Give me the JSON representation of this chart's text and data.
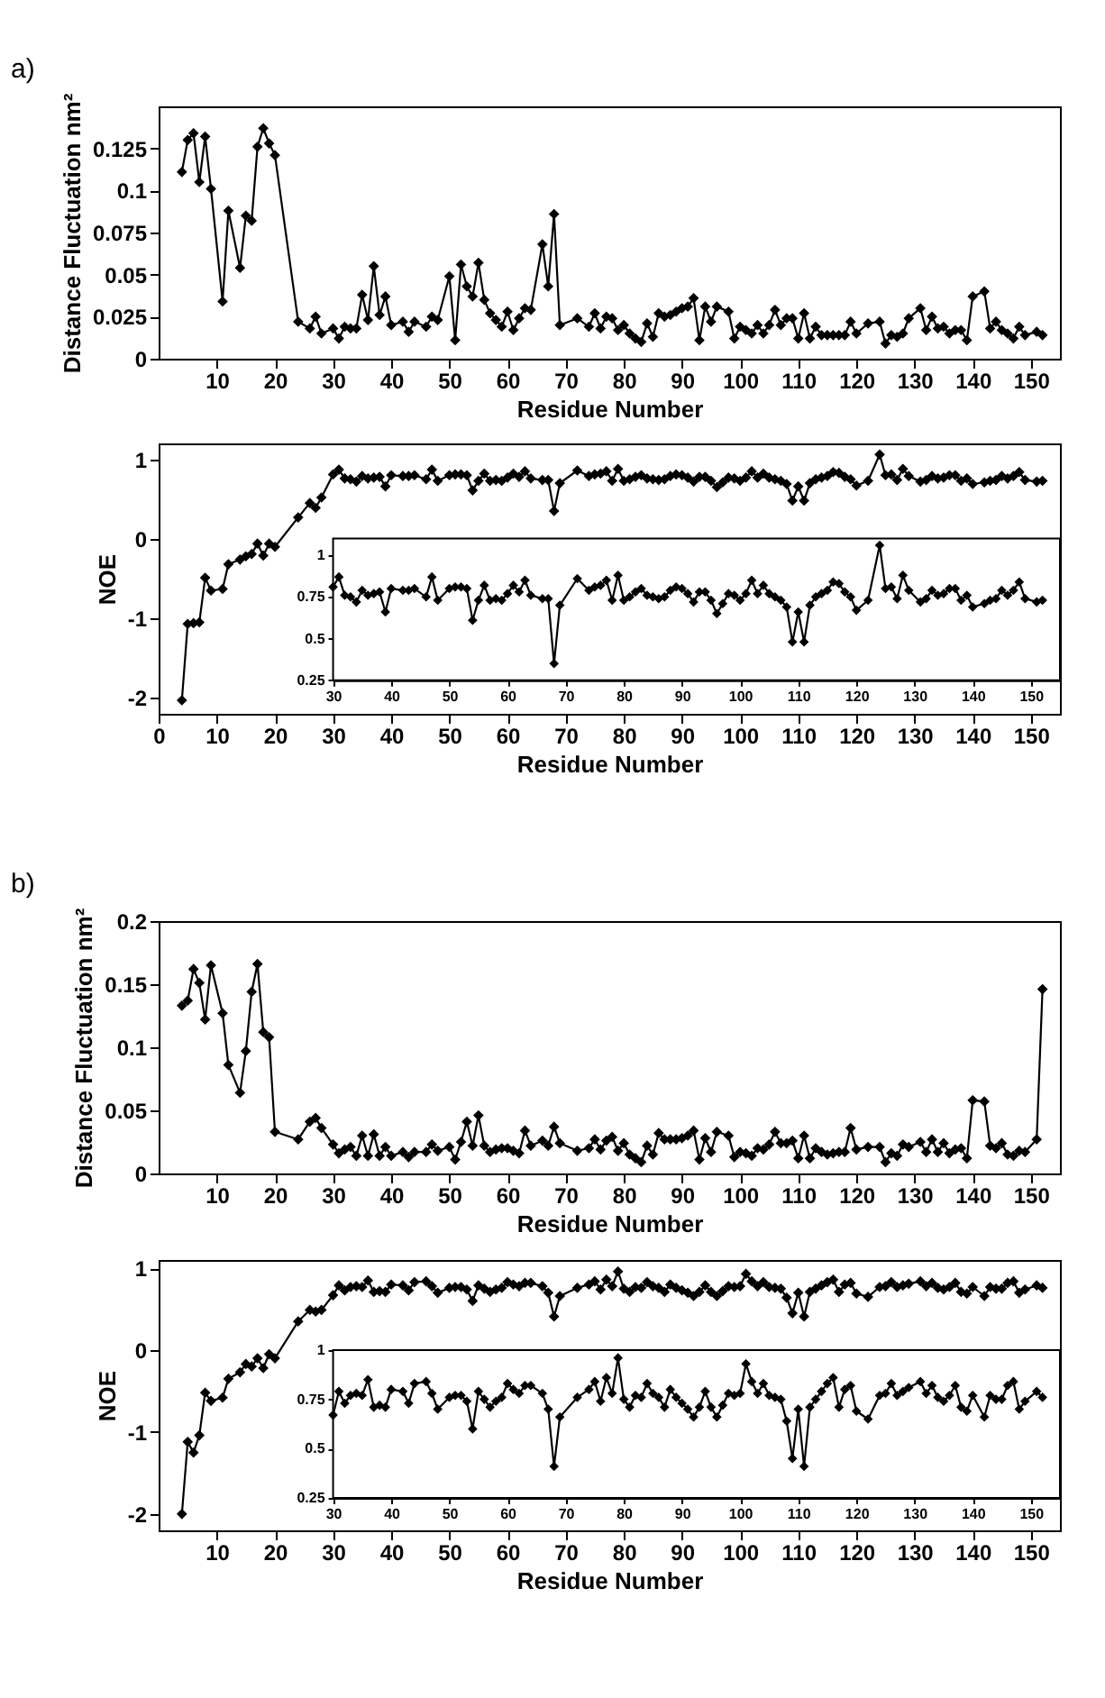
{
  "chart_data": [
    {
      "type": "line",
      "annotations": [
        "a)"
      ],
      "xlabel": "Residue Number",
      "ylabel": "Distance Fluctuation nm²",
      "marker": "diamond",
      "line_style": "solid",
      "grid": false,
      "xlim": [
        0,
        155
      ],
      "ylim": [
        0,
        0.15
      ],
      "xticks": [
        10,
        20,
        30,
        40,
        50,
        60,
        70,
        80,
        90,
        100,
        110,
        120,
        130,
        140,
        150
      ],
      "yticks": [
        0,
        0.025,
        0.05,
        0.075,
        0.1,
        0.125
      ],
      "x": [
        4,
        5,
        6,
        7,
        8,
        9,
        11,
        12,
        14,
        15,
        16,
        17,
        18,
        19,
        20,
        24,
        26,
        27,
        28,
        30,
        31,
        32,
        33,
        34,
        35,
        36,
        37,
        38,
        39,
        40,
        42,
        43,
        44,
        46,
        47,
        48,
        50,
        51,
        52,
        53,
        54,
        55,
        56,
        57,
        58,
        59,
        60,
        61,
        62,
        63,
        64,
        66,
        67,
        68,
        69,
        72,
        74,
        75,
        76,
        77,
        78,
        79,
        80,
        81,
        82,
        83,
        84,
        85,
        86,
        87,
        88,
        89,
        90,
        91,
        92,
        93,
        94,
        95,
        96,
        98,
        99,
        100,
        101,
        102,
        103,
        104,
        105,
        106,
        107,
        108,
        109,
        110,
        111,
        112,
        113,
        114,
        115,
        116,
        117,
        118,
        119,
        120,
        122,
        124,
        125,
        126,
        127,
        128,
        129,
        131,
        132,
        133,
        134,
        135,
        136,
        137,
        138,
        139,
        140,
        142,
        143,
        144,
        145,
        146,
        147,
        148,
        149,
        151,
        152
      ],
      "series": [
        {
          "color": "#000000",
          "values": [
            0.111,
            0.13,
            0.134,
            0.105,
            0.132,
            0.101,
            0.034,
            0.088,
            0.054,
            0.085,
            0.082,
            0.126,
            0.137,
            0.128,
            0.121,
            0.022,
            0.018,
            0.025,
            0.015,
            0.018,
            0.012,
            0.019,
            0.018,
            0.018,
            0.038,
            0.023,
            0.055,
            0.026,
            0.037,
            0.02,
            0.022,
            0.016,
            0.022,
            0.019,
            0.025,
            0.023,
            0.049,
            0.011,
            0.056,
            0.043,
            0.037,
            0.057,
            0.035,
            0.027,
            0.023,
            0.019,
            0.028,
            0.017,
            0.024,
            0.03,
            0.029,
            0.068,
            0.043,
            0.086,
            0.02,
            0.024,
            0.019,
            0.027,
            0.018,
            0.025,
            0.024,
            0.017,
            0.02,
            0.015,
            0.012,
            0.01,
            0.021,
            0.013,
            0.027,
            0.025,
            0.026,
            0.028,
            0.03,
            0.031,
            0.036,
            0.011,
            0.031,
            0.022,
            0.031,
            0.028,
            0.012,
            0.019,
            0.017,
            0.015,
            0.02,
            0.015,
            0.02,
            0.029,
            0.02,
            0.024,
            0.024,
            0.012,
            0.027,
            0.012,
            0.019,
            0.014,
            0.014,
            0.014,
            0.014,
            0.014,
            0.022,
            0.015,
            0.021,
            0.022,
            0.009,
            0.014,
            0.013,
            0.015,
            0.024,
            0.03,
            0.017,
            0.025,
            0.018,
            0.019,
            0.015,
            0.017,
            0.017,
            0.011,
            0.037,
            0.04,
            0.018,
            0.022,
            0.017,
            0.015,
            0.012,
            0.019,
            0.014,
            0.016,
            0.014
          ]
        }
      ]
    },
    {
      "type": "line",
      "xlabel": "Residue Number",
      "ylabel": "NOE",
      "marker": "diamond",
      "line_style": "solid",
      "grid": false,
      "xlim": [
        0,
        155
      ],
      "ylim": [
        -2.2,
        1.2
      ],
      "xticks": [
        0,
        10,
        20,
        30,
        40,
        50,
        60,
        70,
        80,
        90,
        100,
        110,
        120,
        130,
        140,
        150
      ],
      "yticks": [
        -2,
        -1,
        0,
        1
      ],
      "x": [
        4,
        5,
        6,
        7,
        8,
        9,
        11,
        12,
        14,
        15,
        16,
        17,
        18,
        19,
        20,
        24,
        26,
        27,
        28,
        30,
        31,
        32,
        33,
        34,
        35,
        36,
        37,
        38,
        39,
        40,
        42,
        43,
        44,
        46,
        47,
        48,
        50,
        51,
        52,
        53,
        54,
        55,
        56,
        57,
        58,
        59,
        60,
        61,
        62,
        63,
        64,
        66,
        67,
        68,
        69,
        72,
        74,
        75,
        76,
        77,
        78,
        79,
        80,
        81,
        82,
        83,
        84,
        85,
        86,
        87,
        88,
        89,
        90,
        91,
        92,
        93,
        94,
        95,
        96,
        97,
        98,
        99,
        100,
        101,
        102,
        103,
        104,
        105,
        106,
        107,
        108,
        109,
        110,
        111,
        112,
        113,
        114,
        115,
        116,
        117,
        118,
        119,
        120,
        122,
        124,
        125,
        126,
        127,
        128,
        129,
        131,
        132,
        133,
        134,
        135,
        136,
        137,
        138,
        139,
        140,
        142,
        143,
        144,
        145,
        146,
        147,
        148,
        149,
        151,
        152
      ],
      "series": [
        {
          "color": "#000000",
          "values": [
            -2.03,
            -1.07,
            -1.06,
            -1.05,
            -0.49,
            -0.65,
            -0.63,
            -0.32,
            -0.26,
            -0.22,
            -0.19,
            -0.06,
            -0.21,
            -0.06,
            -0.1,
            0.27,
            0.45,
            0.39,
            0.52,
            0.81,
            0.87,
            0.76,
            0.75,
            0.72,
            0.79,
            0.76,
            0.77,
            0.78,
            0.66,
            0.8,
            0.79,
            0.79,
            0.8,
            0.75,
            0.87,
            0.73,
            0.8,
            0.81,
            0.81,
            0.8,
            0.61,
            0.73,
            0.82,
            0.73,
            0.74,
            0.73,
            0.77,
            0.82,
            0.78,
            0.85,
            0.76,
            0.74,
            0.74,
            0.35,
            0.7,
            0.86,
            0.79,
            0.81,
            0.82,
            0.85,
            0.73,
            0.88,
            0.73,
            0.75,
            0.78,
            0.8,
            0.76,
            0.75,
            0.74,
            0.75,
            0.79,
            0.81,
            0.8,
            0.77,
            0.72,
            0.78,
            0.78,
            0.73,
            0.65,
            0.71,
            0.77,
            0.76,
            0.73,
            0.77,
            0.85,
            0.77,
            0.82,
            0.77,
            0.75,
            0.73,
            0.69,
            0.48,
            0.66,
            0.48,
            0.7,
            0.75,
            0.77,
            0.79,
            0.84,
            0.83,
            0.78,
            0.75,
            0.67,
            0.73,
            1.06,
            0.8,
            0.81,
            0.74,
            0.88,
            0.79,
            0.72,
            0.74,
            0.79,
            0.76,
            0.77,
            0.8,
            0.8,
            0.73,
            0.76,
            0.69,
            0.71,
            0.73,
            0.74,
            0.79,
            0.76,
            0.79,
            0.84,
            0.74,
            0.72,
            0.73
          ]
        }
      ]
    },
    {
      "type": "line",
      "marker": "diamond",
      "line_style": "solid",
      "grid": false,
      "xlim": [
        30,
        155
      ],
      "ylim": [
        0.25,
        1.1
      ],
      "xticks": [
        30,
        40,
        50,
        60,
        70,
        80,
        90,
        100,
        110,
        120,
        130,
        140,
        150
      ],
      "yticks": [
        0.25,
        0.5,
        0.75,
        1
      ],
      "x": [
        30,
        31,
        32,
        33,
        34,
        35,
        36,
        37,
        38,
        39,
        40,
        42,
        43,
        44,
        46,
        47,
        48,
        50,
        51,
        52,
        53,
        54,
        55,
        56,
        57,
        58,
        59,
        60,
        61,
        62,
        63,
        64,
        66,
        67,
        68,
        69,
        72,
        74,
        75,
        76,
        77,
        78,
        79,
        80,
        81,
        82,
        83,
        84,
        85,
        86,
        87,
        88,
        89,
        90,
        91,
        92,
        93,
        94,
        95,
        96,
        97,
        98,
        99,
        100,
        101,
        102,
        103,
        104,
        105,
        106,
        107,
        108,
        109,
        110,
        111,
        112,
        113,
        114,
        115,
        116,
        117,
        118,
        119,
        120,
        122,
        124,
        125,
        126,
        127,
        128,
        129,
        131,
        132,
        133,
        134,
        135,
        136,
        137,
        138,
        139,
        140,
        142,
        143,
        144,
        145,
        146,
        147,
        148,
        149,
        151,
        152
      ],
      "series": [
        {
          "color": "#000000",
          "values": [
            0.81,
            0.87,
            0.76,
            0.75,
            0.72,
            0.79,
            0.76,
            0.77,
            0.78,
            0.66,
            0.8,
            0.79,
            0.79,
            0.8,
            0.75,
            0.87,
            0.73,
            0.8,
            0.81,
            0.81,
            0.8,
            0.61,
            0.73,
            0.82,
            0.73,
            0.74,
            0.73,
            0.77,
            0.82,
            0.78,
            0.85,
            0.76,
            0.74,
            0.74,
            0.35,
            0.7,
            0.86,
            0.79,
            0.81,
            0.82,
            0.85,
            0.73,
            0.88,
            0.73,
            0.75,
            0.78,
            0.8,
            0.76,
            0.75,
            0.74,
            0.75,
            0.79,
            0.81,
            0.8,
            0.77,
            0.72,
            0.78,
            0.78,
            0.73,
            0.65,
            0.71,
            0.77,
            0.76,
            0.73,
            0.77,
            0.85,
            0.77,
            0.82,
            0.77,
            0.75,
            0.73,
            0.69,
            0.48,
            0.66,
            0.48,
            0.7,
            0.75,
            0.77,
            0.79,
            0.84,
            0.83,
            0.78,
            0.75,
            0.67,
            0.73,
            1.06,
            0.8,
            0.81,
            0.74,
            0.88,
            0.79,
            0.72,
            0.74,
            0.79,
            0.76,
            0.77,
            0.8,
            0.8,
            0.73,
            0.76,
            0.69,
            0.71,
            0.73,
            0.74,
            0.79,
            0.76,
            0.79,
            0.84,
            0.74,
            0.72,
            0.73
          ]
        }
      ]
    },
    {
      "type": "line",
      "annotations": [
        "b)"
      ],
      "xlabel": "Residue Number",
      "ylabel": "Distance Fluctuation nm²",
      "marker": "diamond",
      "line_style": "solid",
      "grid": false,
      "xlim": [
        0,
        155
      ],
      "ylim": [
        0,
        0.2
      ],
      "xticks": [
        10,
        20,
        30,
        40,
        50,
        60,
        70,
        80,
        90,
        100,
        110,
        120,
        130,
        140,
        150
      ],
      "yticks": [
        0,
        0.05,
        0.1,
        0.15,
        0.2
      ],
      "x": [
        4,
        5,
        6,
        7,
        8,
        9,
        11,
        12,
        14,
        15,
        16,
        17,
        18,
        19,
        20,
        24,
        26,
        27,
        28,
        30,
        31,
        32,
        33,
        34,
        35,
        36,
        37,
        38,
        39,
        40,
        42,
        43,
        44,
        46,
        47,
        48,
        50,
        51,
        52,
        53,
        54,
        55,
        56,
        57,
        58,
        59,
        60,
        61,
        62,
        63,
        64,
        66,
        67,
        68,
        69,
        72,
        74,
        75,
        76,
        77,
        78,
        79,
        80,
        81,
        82,
        83,
        84,
        85,
        86,
        87,
        88,
        89,
        90,
        91,
        92,
        93,
        94,
        95,
        96,
        98,
        99,
        100,
        101,
        102,
        103,
        104,
        105,
        106,
        107,
        108,
        109,
        110,
        111,
        112,
        113,
        114,
        115,
        116,
        117,
        118,
        119,
        120,
        122,
        124,
        125,
        126,
        127,
        128,
        129,
        131,
        132,
        133,
        134,
        135,
        136,
        137,
        138,
        139,
        140,
        142,
        143,
        144,
        145,
        146,
        147,
        148,
        149,
        151,
        152
      ],
      "series": [
        {
          "color": "#000000",
          "values": [
            0.133,
            0.137,
            0.162,
            0.151,
            0.122,
            0.165,
            0.127,
            0.086,
            0.064,
            0.097,
            0.144,
            0.166,
            0.112,
            0.108,
            0.033,
            0.027,
            0.041,
            0.044,
            0.036,
            0.023,
            0.016,
            0.019,
            0.021,
            0.014,
            0.03,
            0.014,
            0.031,
            0.014,
            0.021,
            0.014,
            0.017,
            0.013,
            0.017,
            0.017,
            0.023,
            0.018,
            0.021,
            0.011,
            0.025,
            0.041,
            0.022,
            0.046,
            0.022,
            0.017,
            0.019,
            0.02,
            0.02,
            0.018,
            0.016,
            0.034,
            0.022,
            0.026,
            0.022,
            0.037,
            0.024,
            0.018,
            0.02,
            0.027,
            0.019,
            0.026,
            0.029,
            0.018,
            0.024,
            0.015,
            0.012,
            0.009,
            0.022,
            0.015,
            0.032,
            0.027,
            0.027,
            0.027,
            0.028,
            0.03,
            0.034,
            0.011,
            0.028,
            0.017,
            0.033,
            0.03,
            0.013,
            0.017,
            0.016,
            0.014,
            0.02,
            0.019,
            0.023,
            0.033,
            0.024,
            0.024,
            0.026,
            0.012,
            0.03,
            0.012,
            0.02,
            0.017,
            0.015,
            0.016,
            0.017,
            0.017,
            0.036,
            0.019,
            0.021,
            0.021,
            0.009,
            0.016,
            0.014,
            0.023,
            0.021,
            0.025,
            0.017,
            0.027,
            0.017,
            0.024,
            0.016,
            0.019,
            0.02,
            0.012,
            0.058,
            0.057,
            0.022,
            0.02,
            0.024,
            0.015,
            0.014,
            0.018,
            0.017,
            0.027,
            0.146
          ]
        }
      ]
    },
    {
      "type": "line",
      "xlabel": "Residue Number",
      "ylabel": "NOE",
      "marker": "diamond",
      "line_style": "solid",
      "grid": false,
      "xlim": [
        0,
        155
      ],
      "ylim": [
        -2.2,
        1.1
      ],
      "xticks": [
        10,
        20,
        30,
        40,
        50,
        60,
        70,
        80,
        90,
        100,
        110,
        120,
        130,
        140,
        150
      ],
      "yticks": [
        -2,
        -1,
        0,
        1
      ],
      "x": [
        4,
        5,
        6,
        7,
        8,
        9,
        11,
        12,
        14,
        15,
        16,
        17,
        18,
        19,
        20,
        24,
        26,
        27,
        28,
        30,
        31,
        32,
        33,
        34,
        35,
        36,
        37,
        38,
        39,
        40,
        42,
        43,
        44,
        46,
        47,
        48,
        50,
        51,
        52,
        53,
        54,
        55,
        56,
        57,
        58,
        59,
        60,
        61,
        62,
        63,
        64,
        66,
        67,
        68,
        69,
        72,
        74,
        75,
        76,
        77,
        78,
        79,
        80,
        81,
        82,
        83,
        84,
        85,
        86,
        87,
        88,
        89,
        90,
        91,
        92,
        93,
        94,
        95,
        96,
        97,
        98,
        99,
        100,
        101,
        102,
        103,
        104,
        105,
        106,
        107,
        108,
        109,
        110,
        111,
        112,
        113,
        114,
        115,
        116,
        117,
        118,
        119,
        120,
        122,
        124,
        125,
        126,
        127,
        128,
        129,
        131,
        132,
        133,
        134,
        135,
        136,
        137,
        138,
        139,
        140,
        142,
        143,
        144,
        145,
        146,
        147,
        148,
        149,
        151,
        152
      ],
      "series": [
        {
          "color": "#000000",
          "values": [
            -2.0,
            -1.12,
            -1.25,
            -1.04,
            -0.52,
            -0.62,
            -0.58,
            -0.35,
            -0.27,
            -0.17,
            -0.2,
            -0.1,
            -0.22,
            -0.05,
            -0.1,
            0.35,
            0.49,
            0.47,
            0.49,
            0.67,
            0.79,
            0.73,
            0.77,
            0.78,
            0.77,
            0.85,
            0.71,
            0.72,
            0.71,
            0.8,
            0.79,
            0.73,
            0.83,
            0.84,
            0.78,
            0.7,
            0.76,
            0.77,
            0.77,
            0.74,
            0.6,
            0.79,
            0.75,
            0.71,
            0.74,
            0.76,
            0.83,
            0.8,
            0.78,
            0.82,
            0.82,
            0.78,
            0.7,
            0.41,
            0.66,
            0.76,
            0.8,
            0.84,
            0.74,
            0.86,
            0.78,
            0.96,
            0.75,
            0.71,
            0.77,
            0.76,
            0.83,
            0.78,
            0.76,
            0.71,
            0.8,
            0.76,
            0.73,
            0.7,
            0.66,
            0.71,
            0.79,
            0.71,
            0.66,
            0.72,
            0.78,
            0.77,
            0.78,
            0.93,
            0.84,
            0.78,
            0.83,
            0.77,
            0.76,
            0.75,
            0.64,
            0.45,
            0.7,
            0.41,
            0.71,
            0.75,
            0.79,
            0.83,
            0.86,
            0.71,
            0.8,
            0.82,
            0.69,
            0.65,
            0.77,
            0.78,
            0.83,
            0.77,
            0.79,
            0.81,
            0.84,
            0.78,
            0.82,
            0.76,
            0.74,
            0.77,
            0.82,
            0.71,
            0.69,
            0.77,
            0.66,
            0.77,
            0.75,
            0.75,
            0.82,
            0.84,
            0.7,
            0.74,
            0.79,
            0.76
          ]
        }
      ]
    },
    {
      "type": "line",
      "marker": "diamond",
      "line_style": "solid",
      "grid": false,
      "xlim": [
        30,
        155
      ],
      "ylim": [
        0.25,
        1
      ],
      "xticks": [
        30,
        40,
        50,
        60,
        70,
        80,
        90,
        100,
        110,
        120,
        130,
        140,
        150
      ],
      "yticks": [
        0.25,
        0.5,
        0.75,
        1
      ],
      "x": [
        30,
        31,
        32,
        33,
        34,
        35,
        36,
        37,
        38,
        39,
        40,
        42,
        43,
        44,
        46,
        47,
        48,
        50,
        51,
        52,
        53,
        54,
        55,
        56,
        57,
        58,
        59,
        60,
        61,
        62,
        63,
        64,
        66,
        67,
        68,
        69,
        72,
        74,
        75,
        76,
        77,
        78,
        79,
        80,
        81,
        82,
        83,
        84,
        85,
        86,
        87,
        88,
        89,
        90,
        91,
        92,
        93,
        94,
        95,
        96,
        97,
        98,
        99,
        100,
        101,
        102,
        103,
        104,
        105,
        106,
        107,
        108,
        109,
        110,
        111,
        112,
        113,
        114,
        115,
        116,
        117,
        118,
        119,
        120,
        122,
        124,
        125,
        126,
        127,
        128,
        129,
        131,
        132,
        133,
        134,
        135,
        136,
        137,
        138,
        139,
        140,
        142,
        143,
        144,
        145,
        146,
        147,
        148,
        149,
        151,
        152
      ],
      "series": [
        {
          "color": "#000000",
          "values": [
            0.67,
            0.79,
            0.73,
            0.77,
            0.78,
            0.77,
            0.85,
            0.71,
            0.72,
            0.71,
            0.8,
            0.79,
            0.73,
            0.83,
            0.84,
            0.78,
            0.7,
            0.76,
            0.77,
            0.77,
            0.74,
            0.6,
            0.79,
            0.75,
            0.71,
            0.74,
            0.76,
            0.83,
            0.8,
            0.78,
            0.82,
            0.82,
            0.78,
            0.7,
            0.41,
            0.66,
            0.76,
            0.8,
            0.84,
            0.74,
            0.86,
            0.78,
            0.96,
            0.75,
            0.71,
            0.77,
            0.76,
            0.83,
            0.78,
            0.76,
            0.71,
            0.8,
            0.76,
            0.73,
            0.7,
            0.66,
            0.71,
            0.79,
            0.71,
            0.66,
            0.72,
            0.78,
            0.77,
            0.78,
            0.93,
            0.84,
            0.78,
            0.83,
            0.77,
            0.76,
            0.75,
            0.64,
            0.45,
            0.7,
            0.41,
            0.71,
            0.75,
            0.79,
            0.83,
            0.86,
            0.71,
            0.8,
            0.82,
            0.69,
            0.65,
            0.77,
            0.78,
            0.83,
            0.77,
            0.79,
            0.81,
            0.84,
            0.78,
            0.82,
            0.76,
            0.74,
            0.77,
            0.82,
            0.71,
            0.69,
            0.77,
            0.66,
            0.77,
            0.75,
            0.75,
            0.82,
            0.84,
            0.7,
            0.74,
            0.79,
            0.76
          ]
        }
      ]
    }
  ]
}
